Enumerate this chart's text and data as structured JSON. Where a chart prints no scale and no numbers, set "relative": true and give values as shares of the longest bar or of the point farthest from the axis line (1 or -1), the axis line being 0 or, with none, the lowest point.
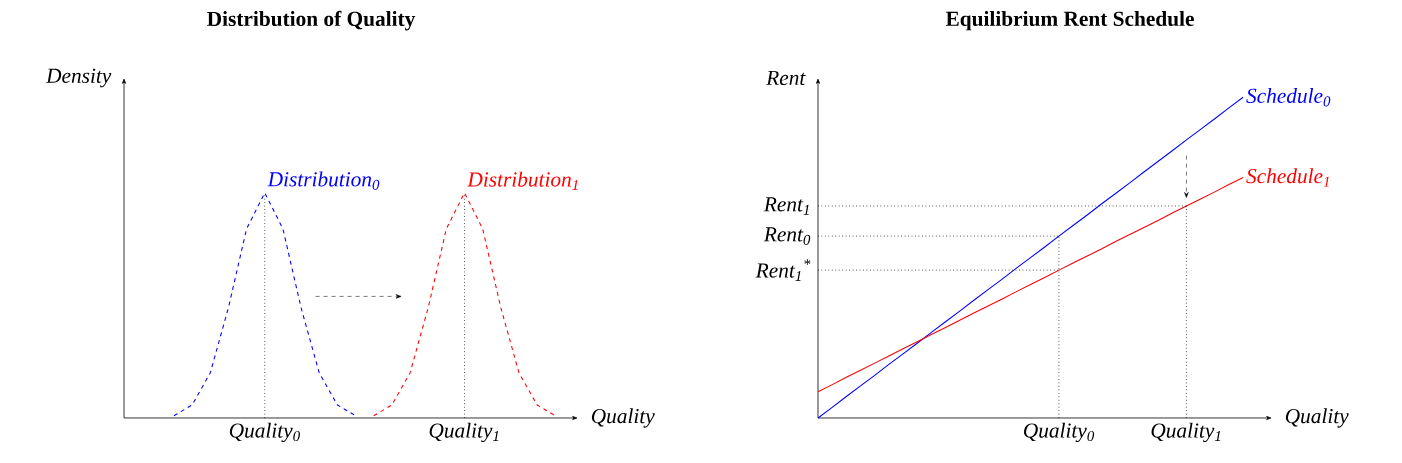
{
  "chart_data": [
    {
      "type": "line",
      "title": "Distribution of Quality",
      "xlabel": "Quality",
      "ylabel": "Density",
      "relative": true,
      "line_style": "dashed",
      "marker": "none",
      "categories": [
        null,
        null,
        null,
        null,
        null,
        "Quality$_{0}$",
        null,
        null,
        null,
        null,
        null,
        null,
        null,
        null,
        null,
        null,
        "Quality$_{1}$",
        null,
        null,
        null,
        null,
        null
      ],
      "series": [
        {
          "name": "Distribution$_{0}$",
          "color": "#0000ff",
          "values": [
            0.01,
            0.058,
            0.2,
            0.49,
            0.84,
            1,
            0.84,
            0.49,
            0.2,
            0.058,
            0.01,
            null,
            null,
            null,
            null,
            null,
            null,
            null,
            null,
            null,
            null,
            null
          ]
        },
        {
          "name": "Distribution$_{1}$",
          "color": "#ff0000",
          "values": [
            null,
            null,
            null,
            null,
            null,
            null,
            null,
            null,
            null,
            null,
            null,
            0.01,
            0.058,
            0.2,
            0.49,
            0.84,
            1,
            0.84,
            0.49,
            0.2,
            0.058,
            0.01
          ]
        }
      ],
      "ref_lines": [
        {
          "axis": "x",
          "value": "Quality$_{0}$",
          "line_style": "dotted"
        },
        {
          "axis": "x",
          "value": "Quality$_{1}$",
          "line_style": "dotted"
        }
      ]
    },
    {
      "type": "line",
      "title": "Equilibrium Rent Schedule",
      "xlabel": "Quality",
      "ylabel": "Rent",
      "relative": true,
      "line_style": "solid",
      "marker": "none",
      "categories": [
        null,
        null,
        null,
        null,
        null,
        null,
        null,
        null,
        null,
        null,
        null,
        null,
        null,
        null,
        null,
        null,
        null,
        "Quality$_{0}$",
        null,
        null,
        null,
        null,
        null,
        null,
        null,
        null,
        "Quality$_{1}$",
        null,
        null,
        null,
        null
      ],
      "series": [
        {
          "name": "Schedule$_{0}$",
          "color": "#0000ff",
          "values": [
            0,
            0.033,
            0.067,
            0.1,
            0.133,
            0.167,
            0.2,
            0.233,
            0.267,
            0.3,
            0.333,
            0.367,
            0.4,
            0.433,
            0.467,
            0.5,
            0.533,
            0.567,
            0.6,
            0.633,
            0.667,
            0.7,
            0.733,
            0.767,
            0.8,
            0.833,
            0.867,
            0.9,
            0.933,
            0.967,
            1
          ]
        },
        {
          "name": "Schedule$_{1}$",
          "color": "#ff0000",
          "values": [
            0.082,
            0.104,
            0.127,
            0.149,
            0.171,
            0.193,
            0.216,
            0.238,
            0.26,
            0.282,
            0.305,
            0.327,
            0.349,
            0.371,
            0.394,
            0.416,
            0.438,
            0.461,
            0.483,
            0.505,
            0.527,
            0.55,
            0.572,
            0.594,
            0.616,
            0.639,
            0.661,
            0.683,
            0.705,
            0.728,
            0.75
          ]
        }
      ],
      "ref_lines": [
        {
          "axis": "x",
          "value": "Quality$_{0}$",
          "line_style": "dotted"
        },
        {
          "axis": "x",
          "value": "Quality$_{1}$",
          "line_style": "dotted"
        },
        {
          "axis": "y",
          "value": 0.661,
          "label": "Rent$_{1}$",
          "line_style": "dotted"
        },
        {
          "axis": "y",
          "value": 0.567,
          "label": "Rent$_{0}$",
          "line_style": "dotted"
        },
        {
          "axis": "y",
          "value": 0.461,
          "label": "Rent$_{1}$$^{*}$",
          "line_style": "dotted"
        }
      ]
    }
  ]
}
